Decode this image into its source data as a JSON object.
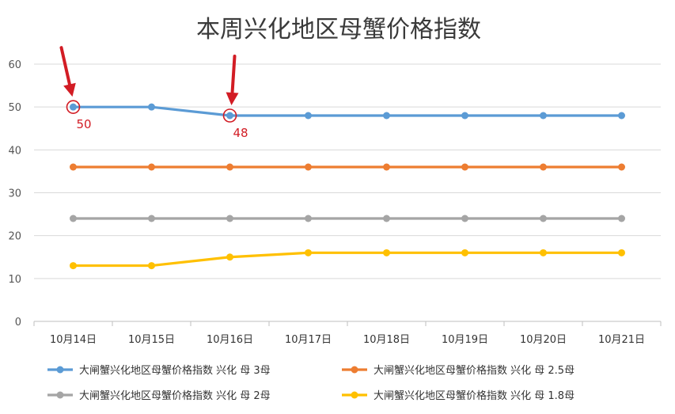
{
  "chart_data": {
    "type": "line",
    "title": "本周兴化地区母蟹价格指数",
    "categories": [
      "10月14日",
      "10月15日",
      "10月16日",
      "10月17日",
      "10月18日",
      "10月19日",
      "10月20日",
      "10月21日"
    ],
    "ylim": [
      0,
      60
    ],
    "yticks": [
      0,
      10,
      20,
      30,
      40,
      50,
      60
    ],
    "grid": true,
    "legend_position": "bottom",
    "series": [
      {
        "name": "大闸蟹兴化地区母蟹价格指数 兴化 母 3母",
        "color": "#5b9bd5",
        "values": [
          50,
          50,
          48,
          48,
          48,
          48,
          48,
          48
        ]
      },
      {
        "name": "大闸蟹兴化地区母蟹价格指数 兴化 母 2.5母",
        "color": "#ed7d31",
        "values": [
          36,
          36,
          36,
          36,
          36,
          36,
          36,
          36
        ]
      },
      {
        "name": "大闸蟹兴化地区母蟹价格指数 兴化 母 2母",
        "color": "#a5a5a5",
        "values": [
          24,
          24,
          24,
          24,
          24,
          24,
          24,
          24
        ]
      },
      {
        "name": "大闸蟹兴化地区母蟹价格指数 兴化 母 1.8母",
        "color": "#ffc000",
        "values": [
          13,
          13,
          15,
          16,
          16,
          16,
          16,
          16
        ]
      }
    ],
    "annotations": [
      {
        "series": 0,
        "index": 0,
        "label": "50",
        "color": "#d21c24"
      },
      {
        "series": 0,
        "index": 2,
        "label": "48",
        "color": "#d21c24"
      }
    ]
  }
}
